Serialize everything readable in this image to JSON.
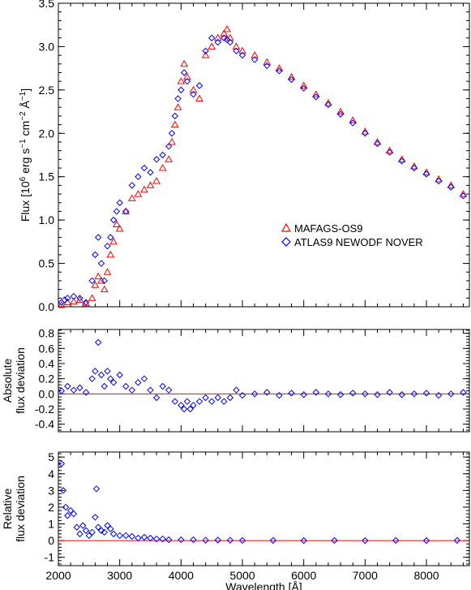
{
  "chart_data": [
    {
      "type": "scatter",
      "panel": "flux",
      "title": "",
      "xlabel": "",
      "ylabel": "Flux [10^6 erg s^-1 cm^-2 Å^-1]",
      "xlim": [
        2000,
        8700
      ],
      "ylim": [
        0.0,
        3.5
      ],
      "yticks": [
        "0.0",
        "0.5",
        "1.0",
        "1.5",
        "2.0",
        "2.5",
        "3.0",
        "3.5"
      ],
      "legend_position": "center-right",
      "grid": false,
      "series": [
        {
          "name": "MAFAGS-OS9",
          "marker": "triangle",
          "color": "#ff0000",
          "x": [
            2050,
            2150,
            2250,
            2350,
            2450,
            2550,
            2600,
            2650,
            2700,
            2750,
            2800,
            2850,
            2900,
            2950,
            3000,
            3100,
            3200,
            3300,
            3400,
            3500,
            3600,
            3700,
            3800,
            3850,
            3900,
            3950,
            4000,
            4050,
            4100,
            4200,
            4300,
            4400,
            4500,
            4600,
            4700,
            4750,
            4800,
            4900,
            5000,
            5200,
            5400,
            5600,
            5800,
            6000,
            6200,
            6400,
            6600,
            6800,
            7000,
            7200,
            7400,
            7600,
            7800,
            8000,
            8200,
            8400,
            8600
          ],
          "y": [
            0.02,
            0.05,
            0.06,
            0.08,
            0.04,
            0.1,
            0.25,
            0.35,
            0.3,
            0.2,
            0.4,
            0.6,
            0.75,
            0.95,
            0.9,
            1.1,
            1.25,
            1.3,
            1.35,
            1.4,
            1.45,
            1.6,
            1.7,
            1.9,
            2.1,
            2.3,
            2.6,
            2.8,
            2.65,
            2.5,
            2.4,
            2.9,
            3.0,
            3.1,
            3.15,
            3.2,
            3.1,
            3.0,
            2.95,
            2.9,
            2.82,
            2.75,
            2.65,
            2.55,
            2.45,
            2.35,
            2.25,
            2.15,
            2.02,
            1.9,
            1.8,
            1.7,
            1.62,
            1.55,
            1.47,
            1.4,
            1.3
          ]
        },
        {
          "name": "ATLAS9 NEWODF NOVER",
          "marker": "diamond",
          "color": "#0000ff",
          "x": [
            2050,
            2100,
            2150,
            2250,
            2350,
            2450,
            2550,
            2600,
            2650,
            2700,
            2750,
            2800,
            2850,
            2900,
            2950,
            3000,
            3100,
            3200,
            3300,
            3400,
            3500,
            3600,
            3700,
            3800,
            3850,
            3900,
            3950,
            4000,
            4050,
            4100,
            4200,
            4300,
            4400,
            4500,
            4600,
            4700,
            4750,
            4800,
            4900,
            5000,
            5200,
            5400,
            5600,
            5800,
            6000,
            6200,
            6400,
            6600,
            6800,
            7000,
            7200,
            7400,
            7600,
            7800,
            8000,
            8200,
            8400,
            8600
          ],
          "y": [
            0.05,
            0.08,
            0.1,
            0.12,
            0.1,
            0.05,
            0.3,
            0.6,
            0.8,
            0.5,
            0.3,
            0.7,
            0.8,
            1.0,
            1.1,
            1.2,
            1.1,
            1.4,
            1.5,
            1.6,
            1.55,
            1.7,
            1.75,
            1.85,
            2.0,
            2.2,
            2.4,
            2.5,
            2.7,
            2.6,
            2.45,
            2.55,
            2.95,
            3.1,
            3.05,
            3.1,
            3.08,
            3.05,
            2.95,
            2.9,
            2.85,
            2.78,
            2.72,
            2.62,
            2.52,
            2.42,
            2.33,
            2.22,
            2.12,
            2.0,
            1.88,
            1.78,
            1.68,
            1.6,
            1.53,
            1.45,
            1.38,
            1.28
          ]
        }
      ]
    },
    {
      "type": "scatter",
      "panel": "absolute deviation",
      "title": "",
      "xlabel": "",
      "ylabel": "Absolute flux deviation",
      "ylabel_lines": [
        "Absolute",
        "flux deviation"
      ],
      "xlim": [
        2000,
        8700
      ],
      "ylim": [
        -0.5,
        0.85
      ],
      "yticks": [
        "-0.4",
        "-0.2",
        "0.0",
        "0.2",
        "0.4",
        "0.6",
        "0.8"
      ],
      "reference_line": {
        "y": 0.0,
        "color": "#ff0000"
      },
      "grid": false,
      "series": [
        {
          "name": "",
          "marker": "diamond",
          "color": "#0000ff",
          "x": [
            2050,
            2150,
            2250,
            2350,
            2450,
            2550,
            2600,
            2650,
            2700,
            2750,
            2800,
            2850,
            2900,
            3000,
            3100,
            3200,
            3300,
            3400,
            3500,
            3600,
            3700,
            3800,
            3900,
            4000,
            4050,
            4100,
            4150,
            4200,
            4300,
            4400,
            4500,
            4600,
            4700,
            4800,
            4900,
            5000,
            5200,
            5400,
            5600,
            5800,
            6000,
            6200,
            6400,
            6600,
            6800,
            7000,
            7200,
            7400,
            7600,
            7800,
            8000,
            8200,
            8400,
            8600
          ],
          "y": [
            0.04,
            0.1,
            0.05,
            0.08,
            0.02,
            0.2,
            0.3,
            0.68,
            0.25,
            0.1,
            0.3,
            0.2,
            0.15,
            0.25,
            0.1,
            0.05,
            0.15,
            0.2,
            0.05,
            -0.05,
            0.1,
            0.05,
            -0.1,
            -0.15,
            -0.2,
            -0.1,
            -0.2,
            -0.15,
            -0.1,
            -0.05,
            -0.1,
            -0.05,
            -0.1,
            -0.05,
            0.05,
            -0.02,
            0.0,
            0.02,
            -0.02,
            0.01,
            -0.01,
            0.02,
            0.0,
            -0.01,
            0.01,
            0.0,
            -0.01,
            0.02,
            -0.01,
            0.0,
            0.01,
            -0.02,
            0.0,
            0.02
          ]
        }
      ]
    },
    {
      "type": "scatter",
      "panel": "relative deviation",
      "title": "",
      "xlabel": "Wavelength [Å]",
      "ylabel": "Relative flux deviation",
      "ylabel_lines": [
        "Relative",
        "flux deviation"
      ],
      "xlim": [
        2000,
        8700
      ],
      "ylim": [
        -1.5,
        5.3
      ],
      "xticks": [
        "2000",
        "3000",
        "4000",
        "5000",
        "6000",
        "7000",
        "8000"
      ],
      "yticks": [
        "-1",
        "0",
        "1",
        "2",
        "3",
        "4",
        "5"
      ],
      "reference_line": {
        "y": 0.0,
        "color": "#ff0000"
      },
      "grid": false,
      "series": [
        {
          "name": "",
          "marker": "diamond",
          "color": "#0000ff",
          "x": [
            2050,
            2080,
            2120,
            2150,
            2200,
            2250,
            2300,
            2350,
            2400,
            2450,
            2500,
            2550,
            2600,
            2620,
            2650,
            2700,
            2750,
            2800,
            2850,
            2900,
            3000,
            3100,
            3200,
            3300,
            3400,
            3500,
            3600,
            3700,
            3800,
            4000,
            4200,
            4400,
            4600,
            4800,
            5000,
            5500,
            6000,
            6500,
            7000,
            7500,
            8000,
            8500
          ],
          "y": [
            4.6,
            3.0,
            2.0,
            1.5,
            1.8,
            1.6,
            0.8,
            0.4,
            0.9,
            0.6,
            0.3,
            0.5,
            1.4,
            3.1,
            0.8,
            0.6,
            0.5,
            0.9,
            0.7,
            0.4,
            0.3,
            0.3,
            0.25,
            0.15,
            0.2,
            0.15,
            0.1,
            0.1,
            0.05,
            0.05,
            0.05,
            0.02,
            0.03,
            0.02,
            0.01,
            0.01,
            0.0,
            0.01,
            0.0,
            0.01,
            0.0,
            0.01
          ]
        }
      ]
    }
  ]
}
